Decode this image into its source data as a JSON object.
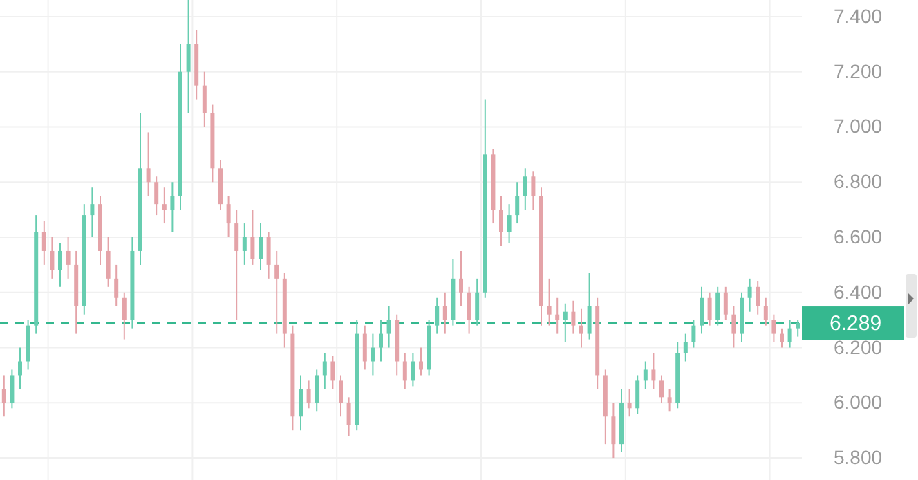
{
  "chart_data": {
    "type": "candlestick",
    "categories": [
      null,
      null,
      null,
      null,
      null,
      null,
      null,
      null,
      null,
      null,
      null,
      null,
      null,
      null,
      null,
      null,
      null,
      null,
      null,
      null,
      null,
      null,
      null,
      null,
      null,
      null,
      null,
      null,
      null,
      null,
      null,
      null,
      null,
      null,
      null,
      null,
      null,
      null,
      null,
      null,
      null,
      null,
      null,
      null,
      null,
      null,
      null,
      null,
      null,
      null,
      null,
      null,
      null,
      null,
      null,
      null,
      null,
      null,
      null,
      null,
      null,
      null,
      null,
      null,
      null,
      null,
      null,
      null,
      null,
      null,
      null,
      null,
      null,
      null,
      null,
      null,
      null,
      null,
      null,
      null,
      null,
      null,
      null,
      null,
      null,
      null,
      null,
      null,
      null,
      null,
      null,
      null,
      null,
      null,
      null,
      null,
      null,
      null,
      null,
      null
    ],
    "ohlc": [
      [
        6.05,
        6.1,
        5.95,
        6.0
      ],
      [
        6.0,
        6.12,
        5.98,
        6.1
      ],
      [
        6.1,
        6.2,
        6.05,
        6.15
      ],
      [
        6.15,
        6.3,
        6.12,
        6.28
      ],
      [
        6.28,
        6.68,
        6.25,
        6.62
      ],
      [
        6.62,
        6.66,
        6.5,
        6.55
      ],
      [
        6.55,
        6.6,
        6.45,
        6.48
      ],
      [
        6.48,
        6.58,
        6.42,
        6.55
      ],
      [
        6.55,
        6.6,
        6.45,
        6.5
      ],
      [
        6.5,
        6.55,
        6.25,
        6.35
      ],
      [
        6.35,
        6.72,
        6.32,
        6.68
      ],
      [
        6.68,
        6.78,
        6.6,
        6.72
      ],
      [
        6.72,
        6.75,
        6.5,
        6.55
      ],
      [
        6.55,
        6.6,
        6.42,
        6.45
      ],
      [
        6.45,
        6.5,
        6.35,
        6.38
      ],
      [
        6.38,
        6.4,
        6.23,
        6.3
      ],
      [
        6.3,
        6.6,
        6.27,
        6.55
      ],
      [
        6.55,
        7.05,
        6.5,
        6.85
      ],
      [
        6.85,
        6.98,
        6.75,
        6.8
      ],
      [
        6.8,
        6.82,
        6.68,
        6.72
      ],
      [
        6.72,
        6.78,
        6.65,
        6.7
      ],
      [
        6.7,
        6.8,
        6.62,
        6.75
      ],
      [
        6.75,
        7.3,
        6.7,
        7.2
      ],
      [
        7.2,
        7.46,
        7.05,
        7.3
      ],
      [
        7.3,
        7.35,
        7.1,
        7.15
      ],
      [
        7.15,
        7.2,
        7.0,
        7.05
      ],
      [
        7.05,
        7.08,
        6.8,
        6.85
      ],
      [
        6.85,
        6.88,
        6.7,
        6.72
      ],
      [
        6.72,
        6.75,
        6.6,
        6.65
      ],
      [
        6.65,
        6.7,
        6.3,
        6.55
      ],
      [
        6.55,
        6.65,
        6.5,
        6.6
      ],
      [
        6.6,
        6.7,
        6.5,
        6.52
      ],
      [
        6.52,
        6.65,
        6.48,
        6.6
      ],
      [
        6.6,
        6.62,
        6.45,
        6.5
      ],
      [
        6.5,
        6.55,
        6.25,
        6.45
      ],
      [
        6.45,
        6.47,
        6.2,
        6.25
      ],
      [
        6.25,
        6.28,
        5.9,
        5.95
      ],
      [
        5.95,
        6.1,
        5.9,
        6.05
      ],
      [
        6.05,
        6.08,
        5.98,
        6.0
      ],
      [
        6.0,
        6.12,
        5.97,
        6.1
      ],
      [
        6.1,
        6.18,
        6.05,
        6.15
      ],
      [
        6.15,
        6.17,
        6.05,
        6.08
      ],
      [
        6.08,
        6.1,
        5.95,
        6.0
      ],
      [
        6.0,
        6.02,
        5.88,
        5.92
      ],
      [
        5.92,
        6.3,
        5.9,
        6.25
      ],
      [
        6.25,
        6.28,
        6.12,
        6.15
      ],
      [
        6.15,
        6.25,
        6.1,
        6.2
      ],
      [
        6.2,
        6.3,
        6.15,
        6.25
      ],
      [
        6.25,
        6.35,
        6.2,
        6.3
      ],
      [
        6.3,
        6.32,
        6.1,
        6.15
      ],
      [
        6.15,
        6.18,
        6.05,
        6.08
      ],
      [
        6.08,
        6.18,
        6.06,
        6.15
      ],
      [
        6.15,
        6.2,
        6.1,
        6.12
      ],
      [
        6.12,
        6.3,
        6.1,
        6.28
      ],
      [
        6.28,
        6.38,
        6.25,
        6.35
      ],
      [
        6.35,
        6.4,
        6.25,
        6.3
      ],
      [
        6.3,
        6.52,
        6.28,
        6.45
      ],
      [
        6.45,
        6.55,
        6.35,
        6.4
      ],
      [
        6.4,
        6.42,
        6.25,
        6.3
      ],
      [
        6.3,
        6.45,
        6.28,
        6.4
      ],
      [
        6.4,
        7.1,
        6.38,
        6.9
      ],
      [
        6.9,
        6.92,
        6.65,
        6.7
      ],
      [
        6.7,
        6.75,
        6.57,
        6.62
      ],
      [
        6.62,
        6.72,
        6.58,
        6.68
      ],
      [
        6.68,
        6.8,
        6.65,
        6.75
      ],
      [
        6.75,
        6.85,
        6.7,
        6.82
      ],
      [
        6.82,
        6.84,
        6.7,
        6.75
      ],
      [
        6.75,
        6.78,
        6.28,
        6.35
      ],
      [
        6.35,
        6.45,
        6.28,
        6.32
      ],
      [
        6.32,
        6.38,
        6.25,
        6.3
      ],
      [
        6.3,
        6.36,
        6.22,
        6.33
      ],
      [
        6.33,
        6.37,
        6.25,
        6.28
      ],
      [
        6.28,
        6.34,
        6.2,
        6.25
      ],
      [
        6.25,
        6.47,
        6.23,
        6.35
      ],
      [
        6.35,
        6.38,
        6.05,
        6.1
      ],
      [
        6.1,
        6.12,
        5.85,
        5.95
      ],
      [
        5.95,
        6.0,
        5.8,
        5.85
      ],
      [
        5.85,
        6.05,
        5.82,
        6.0
      ],
      [
        6.0,
        6.05,
        5.95,
        5.98
      ],
      [
        5.98,
        6.1,
        5.96,
        6.08
      ],
      [
        6.08,
        6.15,
        6.05,
        6.12
      ],
      [
        6.12,
        6.18,
        6.05,
        6.08
      ],
      [
        6.08,
        6.1,
        6.0,
        6.02
      ],
      [
        6.02,
        6.05,
        5.97,
        6.0
      ],
      [
        6.0,
        6.22,
        5.98,
        6.18
      ],
      [
        6.18,
        6.25,
        6.15,
        6.22
      ],
      [
        6.22,
        6.3,
        6.2,
        6.28
      ],
      [
        6.28,
        6.42,
        6.25,
        6.38
      ],
      [
        6.38,
        6.4,
        6.28,
        6.3
      ],
      [
        6.3,
        6.42,
        6.28,
        6.4
      ],
      [
        6.4,
        6.42,
        6.3,
        6.32
      ],
      [
        6.32,
        6.35,
        6.2,
        6.25
      ],
      [
        6.25,
        6.4,
        6.22,
        6.38
      ],
      [
        6.38,
        6.45,
        6.33,
        6.42
      ],
      [
        6.42,
        6.44,
        6.32,
        6.35
      ],
      [
        6.35,
        6.38,
        6.28,
        6.3
      ],
      [
        6.3,
        6.32,
        6.22,
        6.25
      ],
      [
        6.25,
        6.27,
        6.2,
        6.22
      ],
      [
        6.22,
        6.3,
        6.2,
        6.27
      ],
      [
        6.27,
        6.3,
        6.24,
        6.289
      ]
    ],
    "ylim": [
      5.72,
      7.46
    ],
    "yticks": [
      {
        "value": 5.8,
        "label": "5.800"
      },
      {
        "value": 6.0,
        "label": "6.000"
      },
      {
        "value": 6.2,
        "label": "6.200"
      },
      {
        "value": 6.4,
        "label": "6.400"
      },
      {
        "value": 6.6,
        "label": "6.600"
      },
      {
        "value": 6.8,
        "label": "6.800"
      },
      {
        "value": 7.0,
        "label": "7.000"
      },
      {
        "value": 7.2,
        "label": "7.200"
      },
      {
        "value": 7.4,
        "label": "7.400"
      }
    ],
    "grid": true,
    "ref_lines": [
      {
        "axis": "y",
        "value": 6.289,
        "label": "6.289",
        "color": "#35b88f",
        "line_style": "dashed"
      }
    ]
  }
}
